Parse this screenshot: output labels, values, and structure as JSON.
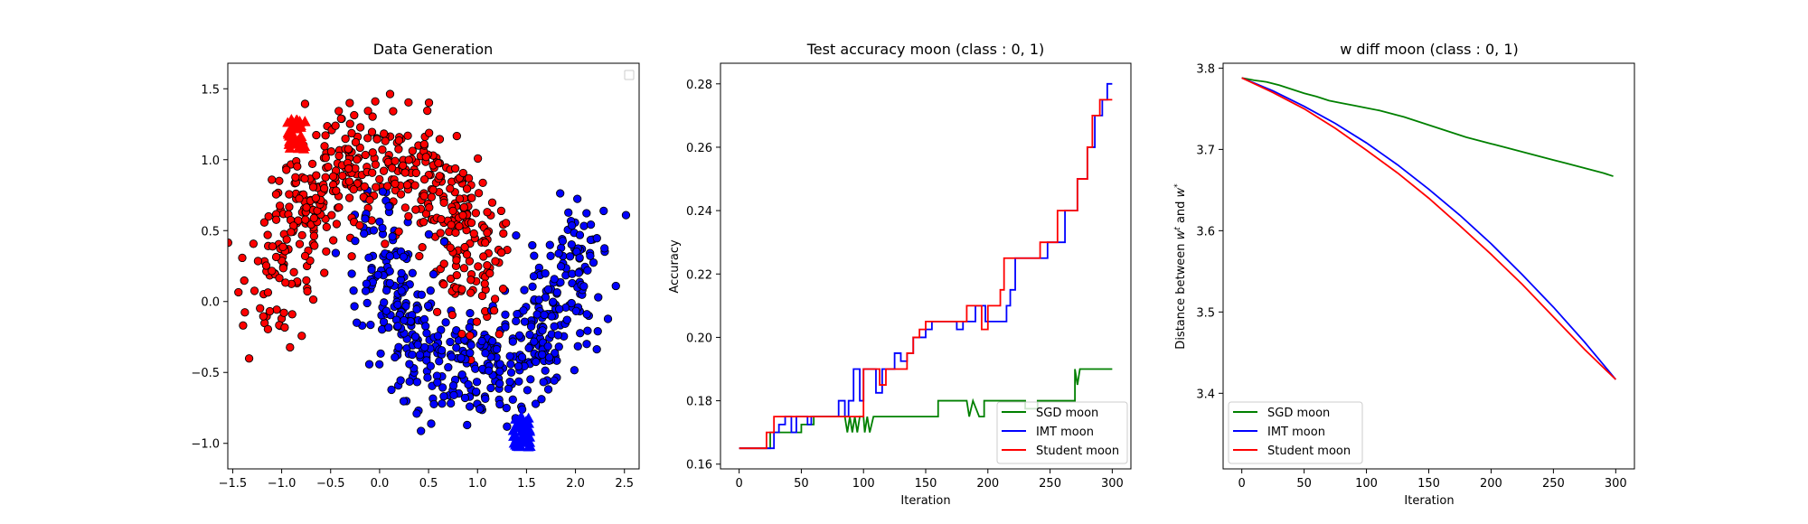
{
  "chart_data": [
    {
      "type": "scatter",
      "title": "Data Generation",
      "xlim": [
        -1.55,
        2.65
      ],
      "ylim": [
        -1.18,
        1.68
      ],
      "xticks": [
        -1.5,
        -1.0,
        -0.5,
        0.0,
        0.5,
        1.0,
        1.5,
        2.0,
        2.5
      ],
      "xtick_labels": [
        "−1.5",
        "−1.0",
        "−0.5",
        "0.0",
        "0.5",
        "1.0",
        "1.5",
        "2.0",
        "2.5"
      ],
      "yticks": [
        -1.0,
        -0.5,
        0.0,
        0.5,
        1.0,
        1.5
      ],
      "ytick_labels": [
        "−1.0",
        "−0.5",
        "0.0",
        "0.5",
        "1.0",
        "1.5"
      ],
      "legend": "top-right (empty)",
      "series": [
        {
          "class": 0,
          "color": "#ff0000",
          "marker": "circle",
          "count": 500,
          "shape": "upper moon, radius 1, centre (0,0), noise 0.2"
        },
        {
          "class": 1,
          "color": "#0000ff",
          "marker": "circle",
          "count": 500,
          "shape": "lower moon, radius 1, centre (1,0.5), noise 0.2"
        },
        {
          "class": 0,
          "color": "#ff0000",
          "marker": "triangle",
          "cluster_centre": [
            -0.85,
            1.18
          ]
        },
        {
          "class": 1,
          "color": "#0000ff",
          "marker": "triangle",
          "cluster_centre": [
            1.45,
            -0.92
          ]
        }
      ]
    },
    {
      "type": "line",
      "title": "Test accuracy moon (class : 0, 1)",
      "xlabel": "Iteration",
      "ylabel": "Accuracy",
      "xlim": [
        -15,
        315
      ],
      "ylim": [
        0.1585,
        0.2865
      ],
      "xticks": [
        0,
        50,
        100,
        150,
        200,
        250,
        300
      ],
      "yticks": [
        0.16,
        0.18,
        0.2,
        0.22,
        0.24,
        0.26,
        0.28
      ],
      "ytick_labels": [
        "0.16",
        "0.18",
        "0.20",
        "0.22",
        "0.24",
        "0.26",
        "0.28"
      ],
      "legend": "bottom-right",
      "series": [
        {
          "name": "SGD moon",
          "color": "#008000",
          "points": [
            [
              0,
              0.165
            ],
            [
              25,
              0.165
            ],
            [
              25,
              0.17
            ],
            [
              50,
              0.17
            ],
            [
              50,
              0.1725
            ],
            [
              60,
              0.1725
            ],
            [
              60,
              0.175
            ],
            [
              85,
              0.175
            ],
            [
              87,
              0.17
            ],
            [
              89,
              0.175
            ],
            [
              91,
              0.17
            ],
            [
              93,
              0.175
            ],
            [
              95,
              0.17
            ],
            [
              97,
              0.175
            ],
            [
              100,
              0.175
            ],
            [
              101,
              0.17
            ],
            [
              103,
              0.175
            ],
            [
              105,
              0.17
            ],
            [
              108,
              0.175
            ],
            [
              160,
              0.175
            ],
            [
              160,
              0.18
            ],
            [
              183,
              0.18
            ],
            [
              185,
              0.175
            ],
            [
              188,
              0.18
            ],
            [
              193,
              0.175
            ],
            [
              197,
              0.175
            ],
            [
              197,
              0.18
            ],
            [
              230,
              0.18
            ],
            [
              230,
              0.1775
            ],
            [
              240,
              0.1775
            ],
            [
              240,
              0.18
            ],
            [
              270,
              0.18
            ],
            [
              270,
              0.19
            ],
            [
              272,
              0.185
            ],
            [
              274,
              0.19
            ],
            [
              300,
              0.19
            ]
          ]
        },
        {
          "name": "IMT moon",
          "color": "#0000ff",
          "points": [
            [
              0,
              0.165
            ],
            [
              28,
              0.165
            ],
            [
              28,
              0.17
            ],
            [
              32,
              0.17
            ],
            [
              32,
              0.1725
            ],
            [
              37,
              0.1725
            ],
            [
              37,
              0.175
            ],
            [
              42,
              0.175
            ],
            [
              42,
              0.17
            ],
            [
              46,
              0.17
            ],
            [
              46,
              0.175
            ],
            [
              55,
              0.175
            ],
            [
              55,
              0.1725
            ],
            [
              58,
              0.1725
            ],
            [
              58,
              0.175
            ],
            [
              80,
              0.175
            ],
            [
              80,
              0.18
            ],
            [
              85,
              0.18
            ],
            [
              85,
              0.175
            ],
            [
              88,
              0.175
            ],
            [
              88,
              0.18
            ],
            [
              92,
              0.18
            ],
            [
              92,
              0.19
            ],
            [
              97,
              0.19
            ],
            [
              97,
              0.18
            ],
            [
              100,
              0.18
            ],
            [
              100,
              0.19
            ],
            [
              110,
              0.19
            ],
            [
              110,
              0.1825
            ],
            [
              115,
              0.1825
            ],
            [
              115,
              0.19
            ],
            [
              125,
              0.19
            ],
            [
              125,
              0.195
            ],
            [
              130,
              0.195
            ],
            [
              130,
              0.1925
            ],
            [
              135,
              0.1925
            ],
            [
              135,
              0.195
            ],
            [
              140,
              0.195
            ],
            [
              140,
              0.2
            ],
            [
              150,
              0.2
            ],
            [
              150,
              0.2025
            ],
            [
              155,
              0.2025
            ],
            [
              155,
              0.205
            ],
            [
              175,
              0.205
            ],
            [
              175,
              0.2025
            ],
            [
              180,
              0.2025
            ],
            [
              180,
              0.205
            ],
            [
              190,
              0.205
            ],
            [
              190,
              0.21
            ],
            [
              198,
              0.21
            ],
            [
              198,
              0.205
            ],
            [
              215,
              0.205
            ],
            [
              215,
              0.21
            ],
            [
              218,
              0.21
            ],
            [
              218,
              0.215
            ],
            [
              222,
              0.215
            ],
            [
              222,
              0.225
            ],
            [
              248,
              0.225
            ],
            [
              248,
              0.23
            ],
            [
              262,
              0.23
            ],
            [
              262,
              0.24
            ],
            [
              272,
              0.24
            ],
            [
              272,
              0.25
            ],
            [
              280,
              0.25
            ],
            [
              280,
              0.26
            ],
            [
              286,
              0.26
            ],
            [
              286,
              0.27
            ],
            [
              292,
              0.27
            ],
            [
              292,
              0.275
            ],
            [
              296,
              0.275
            ],
            [
              296,
              0.28
            ],
            [
              300,
              0.28
            ]
          ]
        },
        {
          "name": "Student moon",
          "color": "#ff0000",
          "points": [
            [
              0,
              0.165
            ],
            [
              22,
              0.165
            ],
            [
              22,
              0.17
            ],
            [
              28,
              0.17
            ],
            [
              28,
              0.175
            ],
            [
              100,
              0.175
            ],
            [
              100,
              0.19
            ],
            [
              113,
              0.19
            ],
            [
              113,
              0.185
            ],
            [
              118,
              0.185
            ],
            [
              118,
              0.19
            ],
            [
              135,
              0.19
            ],
            [
              135,
              0.195
            ],
            [
              140,
              0.195
            ],
            [
              140,
              0.2
            ],
            [
              145,
              0.2
            ],
            [
              145,
              0.2025
            ],
            [
              150,
              0.2025
            ],
            [
              150,
              0.205
            ],
            [
              183,
              0.205
            ],
            [
              183,
              0.21
            ],
            [
              195,
              0.21
            ],
            [
              195,
              0.2025
            ],
            [
              200,
              0.2025
            ],
            [
              200,
              0.21
            ],
            [
              210,
              0.21
            ],
            [
              210,
              0.215
            ],
            [
              213,
              0.215
            ],
            [
              213,
              0.225
            ],
            [
              242,
              0.225
            ],
            [
              242,
              0.23
            ],
            [
              256,
              0.23
            ],
            [
              256,
              0.24
            ],
            [
              272,
              0.24
            ],
            [
              272,
              0.25
            ],
            [
              280,
              0.25
            ],
            [
              280,
              0.26
            ],
            [
              284,
              0.26
            ],
            [
              284,
              0.27
            ],
            [
              290,
              0.27
            ],
            [
              290,
              0.275
            ],
            [
              300,
              0.275
            ]
          ]
        }
      ]
    },
    {
      "type": "line",
      "title": "w diff moon (class : 0, 1)",
      "xlabel": "Iteration",
      "ylabel": "Distance between $w^t$ and $w^*$",
      "xlim": [
        -15,
        315
      ],
      "ylim": [
        3.307,
        3.806
      ],
      "xticks": [
        0,
        50,
        100,
        150,
        200,
        250,
        300
      ],
      "yticks": [
        3.4,
        3.5,
        3.6,
        3.7,
        3.8
      ],
      "ytick_labels": [
        "3.4",
        "3.5",
        "3.6",
        "3.7",
        "3.8"
      ],
      "legend": "bottom-left",
      "series": [
        {
          "name": "SGD moon",
          "color": "#008000",
          "points": [
            [
              0,
              3.788
            ],
            [
              10,
              3.785
            ],
            [
              20,
              3.783
            ],
            [
              30,
              3.779
            ],
            [
              40,
              3.774
            ],
            [
              50,
              3.769
            ],
            [
              60,
              3.765
            ],
            [
              70,
              3.76
            ],
            [
              80,
              3.757
            ],
            [
              90,
              3.754
            ],
            [
              100,
              3.751
            ],
            [
              110,
              3.748
            ],
            [
              120,
              3.744
            ],
            [
              130,
              3.74
            ],
            [
              140,
              3.735
            ],
            [
              150,
              3.73
            ],
            [
              160,
              3.725
            ],
            [
              170,
              3.72
            ],
            [
              180,
              3.715
            ],
            [
              190,
              3.711
            ],
            [
              200,
              3.707
            ],
            [
              210,
              3.703
            ],
            [
              220,
              3.699
            ],
            [
              230,
              3.695
            ],
            [
              240,
              3.691
            ],
            [
              250,
              3.687
            ],
            [
              260,
              3.683
            ],
            [
              270,
              3.679
            ],
            [
              280,
              3.675
            ],
            [
              290,
              3.671
            ],
            [
              298,
              3.667
            ]
          ]
        },
        {
          "name": "IMT moon",
          "color": "#0000ff",
          "points": [
            [
              0,
              3.788
            ],
            [
              25,
              3.772
            ],
            [
              50,
              3.753
            ],
            [
              75,
              3.732
            ],
            [
              100,
              3.708
            ],
            [
              125,
              3.681
            ],
            [
              150,
              3.651
            ],
            [
              175,
              3.619
            ],
            [
              200,
              3.584
            ],
            [
              225,
              3.546
            ],
            [
              250,
              3.506
            ],
            [
              275,
              3.463
            ],
            [
              300,
              3.417
            ]
          ]
        },
        {
          "name": "Student moon",
          "color": "#ff0000",
          "points": [
            [
              0,
              3.788
            ],
            [
              25,
              3.77
            ],
            [
              50,
              3.75
            ],
            [
              75,
              3.726
            ],
            [
              100,
              3.699
            ],
            [
              125,
              3.671
            ],
            [
              150,
              3.64
            ],
            [
              175,
              3.606
            ],
            [
              200,
              3.571
            ],
            [
              225,
              3.534
            ],
            [
              250,
              3.494
            ],
            [
              275,
              3.454
            ],
            [
              300,
              3.417
            ]
          ]
        }
      ]
    }
  ]
}
